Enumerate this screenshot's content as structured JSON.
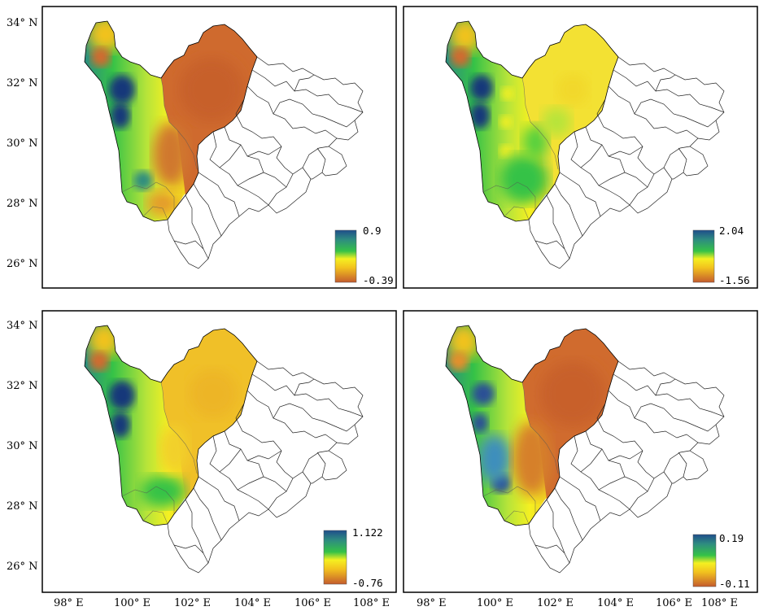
{
  "figure": {
    "lat_labels": [
      "34° N",
      "32° N",
      "30° N",
      "28° N",
      "26° N"
    ],
    "lon_labels": [
      "98° E",
      "100° E",
      "102° E",
      "104° E",
      "106° E",
      "108° E"
    ]
  },
  "panels": [
    {
      "id": "top-left",
      "legend": {
        "max": "0.9",
        "min": "-0.39"
      },
      "scheme": "east-high"
    },
    {
      "id": "top-right",
      "legend": {
        "max": "2.04",
        "min": "-1.56"
      },
      "scheme": "east-mid"
    },
    {
      "id": "bottom-left",
      "legend": {
        "max": "1.122",
        "min": "-0.76"
      },
      "scheme": "east-mid2"
    },
    {
      "id": "bottom-right",
      "legend": {
        "max": "0.19",
        "min": "-0.11"
      },
      "scheme": "east-high"
    }
  ],
  "colors": {
    "blue": "#17357a",
    "teal": "#2e8c80",
    "green": "#35c247",
    "lime": "#b6e43a",
    "yellow": "#f5f021",
    "gold": "#f2c21e",
    "orange": "#e2872d",
    "rust": "#c45c2d",
    "border": "#000000"
  }
}
